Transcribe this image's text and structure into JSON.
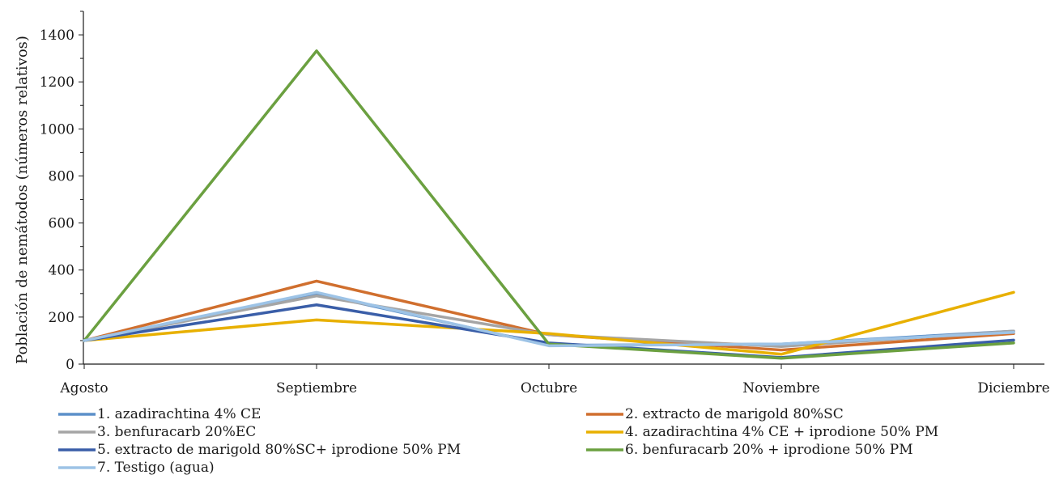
{
  "chart_data": {
    "type": "line",
    "title": "",
    "xlabel": "",
    "ylabel": "Población de nemátodos (números relativos)",
    "categories": [
      "Agosto",
      "Septiembre",
      "Octubre",
      "Noviembre",
      "Diciembre"
    ],
    "ylim": [
      0,
      1500
    ],
    "yticks": [
      0,
      200,
      400,
      600,
      800,
      1000,
      1200,
      1400
    ],
    "grid": false,
    "legend": "bottom",
    "series": [
      {
        "name": "1. azadirachtina 4% CE",
        "color": "#5b8fc9",
        "values": [
          100,
          300,
          80,
          85,
          140
        ]
      },
      {
        "name": "2. extracto de marigold 80%SC",
        "color": "#d06f2e",
        "values": [
          100,
          353,
          125,
          60,
          130
        ]
      },
      {
        "name": "3. benfuracarb 20%EC",
        "color": "#a5a5a5",
        "values": [
          100,
          290,
          125,
          75,
          140
        ]
      },
      {
        "name": "4. azadirachtina 4% CE + iprodione 50% PM",
        "color": "#e8b000",
        "values": [
          100,
          188,
          130,
          42,
          305
        ]
      },
      {
        "name": "5. extracto de marigold 80%SC+ iprodione 50% PM",
        "color": "#3a5ea8",
        "values": [
          100,
          252,
          90,
          28,
          102
        ]
      },
      {
        "name": "6. benfuracarb 20% + iprodione 50% PM",
        "color": "#6ba040",
        "values": [
          100,
          1332,
          85,
          25,
          90
        ]
      },
      {
        "name": "7. Testigo (agua)",
        "color": "#9dc3e6",
        "values": [
          100,
          305,
          78,
          85,
          135
        ]
      }
    ]
  }
}
